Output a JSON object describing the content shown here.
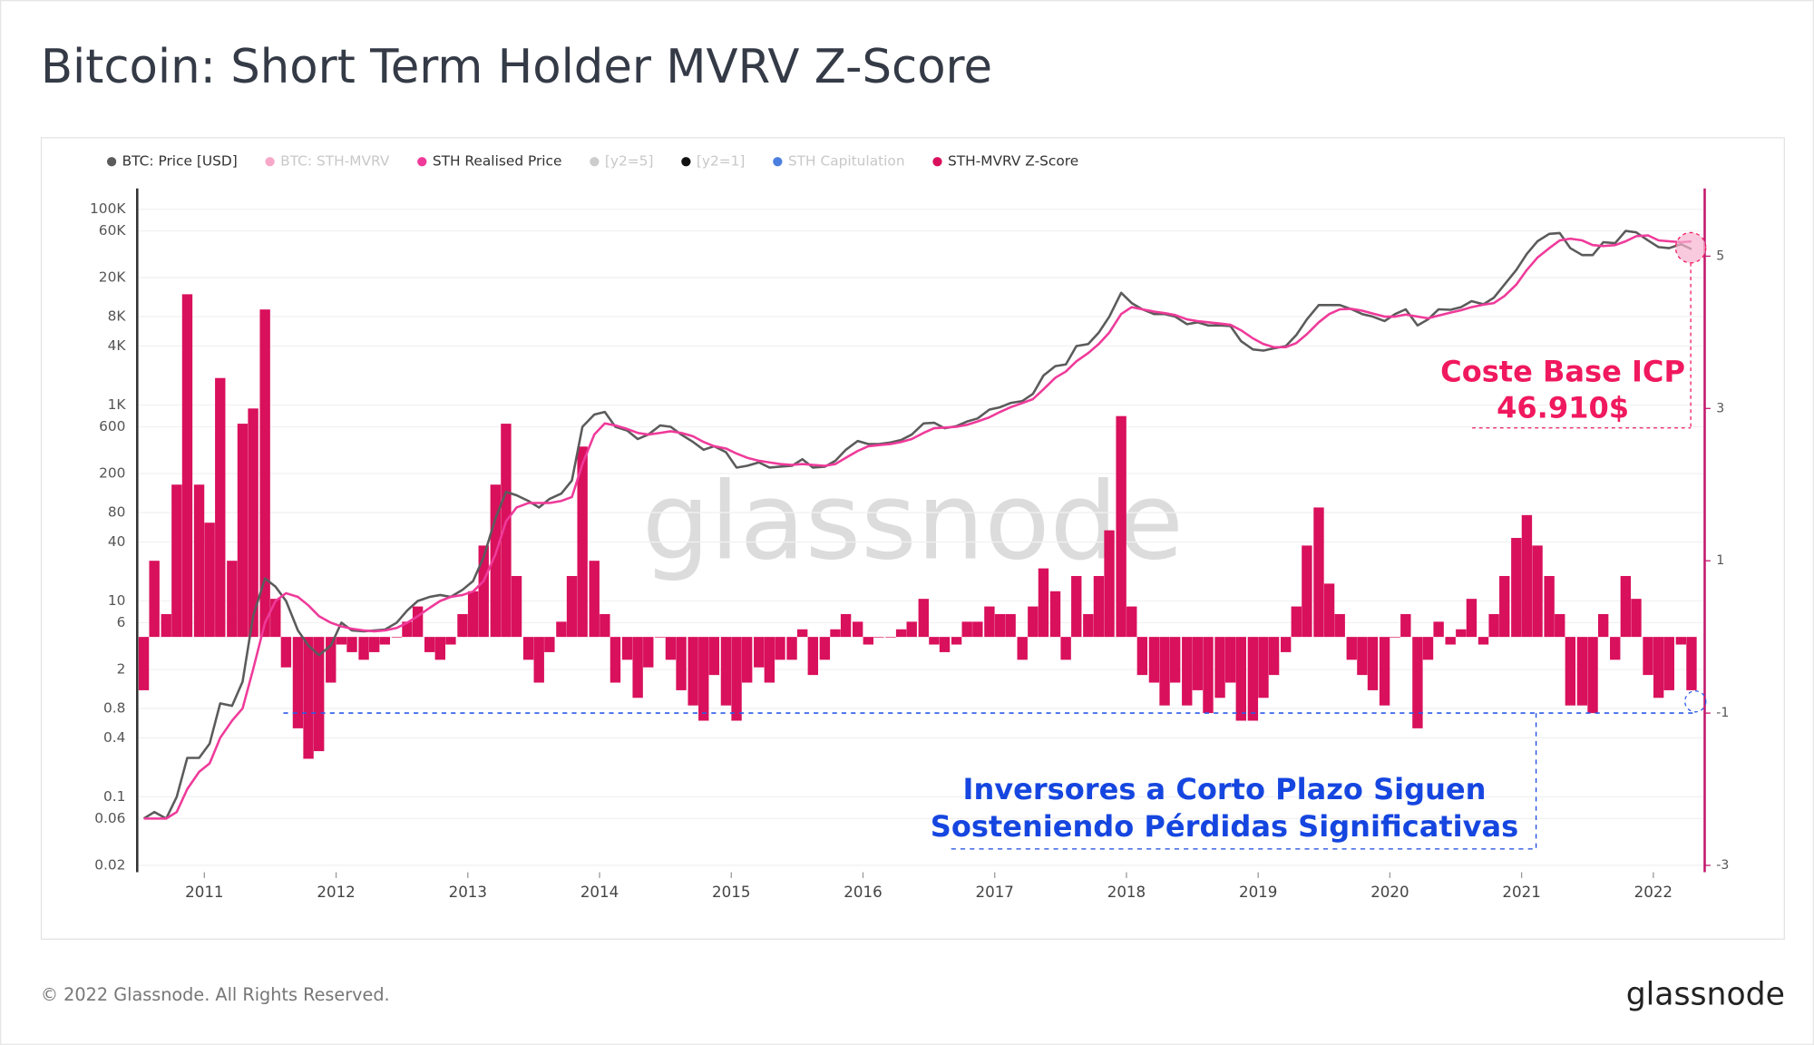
{
  "chart_data": {
    "type": "line",
    "title": "Bitcoin: Short Term Holder MVRV Z-Score",
    "watermark": "glassnode",
    "footer": "© 2022 Glassnode. All Rights Reserved.",
    "logo": "glassnode",
    "yscale": "log",
    "grid": true,
    "xlim": [
      2010.49,
      2022.39
    ],
    "xticks": [
      2011,
      2012,
      2013,
      2014,
      2015,
      2016,
      2017,
      2018,
      2019,
      2020,
      2021,
      2022
    ],
    "ylim": [
      0.017,
      163000
    ],
    "yticks": [
      {
        "value": 100000,
        "label": "100K"
      },
      {
        "value": 60000,
        "label": "60K"
      },
      {
        "value": 20000,
        "label": "20K"
      },
      {
        "value": 8000,
        "label": "8K"
      },
      {
        "value": 4000,
        "label": "4K"
      },
      {
        "value": 1000,
        "label": "1K"
      },
      600,
      200,
      80,
      40,
      10,
      6,
      2,
      0.8,
      0.4,
      0.1,
      0.06,
      0.02
    ],
    "y2lim": [
      -3.09,
      5.89
    ],
    "y2ticks": [
      5,
      3,
      1,
      -1,
      -3
    ],
    "x": [
      2010.54,
      2010.62,
      2010.71,
      2010.79,
      2010.87,
      2010.96,
      2011.04,
      2011.12,
      2011.21,
      2011.29,
      2011.37,
      2011.46,
      2011.54,
      2011.62,
      2011.71,
      2011.79,
      2011.87,
      2011.96,
      2012.04,
      2012.12,
      2012.21,
      2012.29,
      2012.37,
      2012.46,
      2012.54,
      2012.62,
      2012.71,
      2012.79,
      2012.87,
      2012.96,
      2013.04,
      2013.12,
      2013.21,
      2013.29,
      2013.37,
      2013.46,
      2013.54,
      2013.62,
      2013.71,
      2013.79,
      2013.87,
      2013.96,
      2014.04,
      2014.12,
      2014.21,
      2014.29,
      2014.37,
      2014.46,
      2014.54,
      2014.62,
      2014.71,
      2014.79,
      2014.87,
      2014.96,
      2015.04,
      2015.12,
      2015.21,
      2015.29,
      2015.37,
      2015.46,
      2015.54,
      2015.62,
      2015.71,
      2015.79,
      2015.87,
      2015.96,
      2016.04,
      2016.12,
      2016.21,
      2016.29,
      2016.37,
      2016.46,
      2016.54,
      2016.62,
      2016.71,
      2016.79,
      2016.87,
      2016.96,
      2017.04,
      2017.12,
      2017.21,
      2017.29,
      2017.37,
      2017.46,
      2017.54,
      2017.62,
      2017.71,
      2017.79,
      2017.87,
      2017.96,
      2018.04,
      2018.12,
      2018.21,
      2018.29,
      2018.37,
      2018.46,
      2018.54,
      2018.62,
      2018.71,
      2018.79,
      2018.87,
      2018.96,
      2019.04,
      2019.12,
      2019.21,
      2019.29,
      2019.37,
      2019.46,
      2019.54,
      2019.62,
      2019.71,
      2019.79,
      2019.87,
      2019.96,
      2020.04,
      2020.12,
      2020.21,
      2020.29,
      2020.37,
      2020.46,
      2020.54,
      2020.62,
      2020.71,
      2020.79,
      2020.87,
      2020.96,
      2021.04,
      2021.12,
      2021.21,
      2021.29,
      2021.37,
      2021.46,
      2021.54,
      2021.62,
      2021.71,
      2021.79,
      2021.87,
      2021.96,
      2022.04,
      2022.12,
      2022.21,
      2022.29
    ],
    "series": [
      {
        "name": "BTC: Price [USD]",
        "color": "#5b5b5b",
        "visible": true,
        "type": "line",
        "axis": "y",
        "values": [
          0.06,
          0.07,
          0.06,
          0.1,
          0.25,
          0.25,
          0.35,
          0.9,
          0.85,
          1.5,
          7,
          17,
          14,
          10,
          5,
          3.5,
          2.8,
          3.5,
          6,
          5,
          4.9,
          5,
          5.1,
          6,
          8,
          10,
          11,
          11.5,
          11,
          13,
          16,
          28,
          70,
          130,
          120,
          105,
          90,
          110,
          125,
          170,
          600,
          800,
          850,
          600,
          550,
          450,
          500,
          620,
          600,
          500,
          420,
          350,
          380,
          330,
          230,
          240,
          260,
          230,
          235,
          240,
          280,
          230,
          235,
          270,
          350,
          430,
          400,
          400,
          415,
          440,
          500,
          650,
          660,
          580,
          610,
          680,
          730,
          900,
          950,
          1050,
          1100,
          1300,
          2000,
          2500,
          2600,
          4000,
          4200,
          5500,
          8000,
          14000,
          11000,
          9500,
          8500,
          8500,
          8000,
          6700,
          7000,
          6500,
          6500,
          6400,
          4500,
          3700,
          3600,
          3800,
          4000,
          5200,
          7500,
          10500,
          10500,
          10500,
          9500,
          8500,
          8000,
          7200,
          8500,
          9500,
          6500,
          7500,
          9500,
          9400,
          10000,
          11500,
          10700,
          12500,
          17000,
          24000,
          35000,
          47000,
          56000,
          57000,
          40000,
          34000,
          34000,
          46000,
          45000,
          60000,
          58000,
          48000,
          41000,
          40000,
          44000,
          39000
        ]
      },
      {
        "name": "BTC: STH-MVRV",
        "color": "#f7a8c8",
        "visible": false
      },
      {
        "name": "STH Realised Price",
        "color": "#ef3a9a",
        "visible": true,
        "type": "line",
        "axis": "y",
        "values": [
          0.06,
          0.06,
          0.06,
          0.07,
          0.12,
          0.18,
          0.22,
          0.4,
          0.6,
          0.8,
          2,
          6,
          10,
          12,
          11,
          9,
          7,
          6,
          5.5,
          5.2,
          5,
          4.9,
          5,
          5.3,
          6,
          7,
          8.5,
          10,
          11,
          11.5,
          12.5,
          16,
          30,
          65,
          90,
          100,
          100,
          100,
          105,
          115,
          250,
          500,
          650,
          620,
          570,
          520,
          500,
          520,
          540,
          520,
          480,
          420,
          380,
          360,
          320,
          290,
          270,
          260,
          250,
          245,
          250,
          245,
          240,
          250,
          290,
          340,
          380,
          390,
          400,
          420,
          450,
          520,
          580,
          590,
          600,
          630,
          680,
          750,
          850,
          950,
          1050,
          1150,
          1450,
          1900,
          2200,
          2800,
          3400,
          4200,
          5500,
          8500,
          10000,
          9500,
          9000,
          8700,
          8300,
          7500,
          7200,
          7000,
          6800,
          6600,
          5800,
          4800,
          4200,
          3900,
          3900,
          4300,
          5300,
          7000,
          8500,
          9500,
          9600,
          9200,
          8600,
          8000,
          8000,
          8400,
          8000,
          7700,
          8200,
          8800,
          9300,
          10000,
          10600,
          11000,
          13000,
          17000,
          24000,
          32000,
          40000,
          48000,
          50000,
          48000,
          43000,
          42000,
          43000,
          47000,
          53000,
          54000,
          48000,
          47000,
          46000,
          46910
        ]
      },
      {
        "name": "[y2=5]",
        "color": "#cccccc",
        "visible": false
      },
      {
        "name": "[y2=1]",
        "color": "#111111",
        "visible": false
      },
      {
        "name": "STH Capitulation",
        "color": "#4a7fe0",
        "visible": false
      },
      {
        "name": "STH-MVRV Z-Score",
        "color": "#d9105c",
        "visible": true,
        "type": "bar",
        "axis": "y2",
        "values": [
          -0.7,
          1.0,
          0.3,
          2.0,
          4.5,
          2.0,
          1.5,
          3.4,
          1.0,
          2.8,
          3.0,
          4.3,
          0.5,
          -0.4,
          -1.2,
          -1.6,
          -1.5,
          -0.6,
          -0.1,
          -0.2,
          -0.3,
          -0.2,
          -0.1,
          0.0,
          0.2,
          0.4,
          -0.2,
          -0.3,
          -0.1,
          0.3,
          0.6,
          1.2,
          2.0,
          2.8,
          0.8,
          -0.3,
          -0.6,
          -0.2,
          0.2,
          0.8,
          2.5,
          1.0,
          0.3,
          -0.6,
          -0.3,
          -0.8,
          -0.4,
          0.0,
          -0.3,
          -0.7,
          -0.9,
          -1.1,
          -0.5,
          -0.9,
          -1.1,
          -0.6,
          -0.4,
          -0.6,
          -0.3,
          -0.3,
          0.1,
          -0.5,
          -0.3,
          0.1,
          0.3,
          0.2,
          -0.1,
          0.0,
          0.0,
          0.1,
          0.2,
          0.5,
          -0.1,
          -0.2,
          -0.1,
          0.2,
          0.2,
          0.4,
          0.3,
          0.3,
          -0.3,
          0.4,
          0.9,
          0.6,
          -0.3,
          0.8,
          0.3,
          0.8,
          1.4,
          2.9,
          0.4,
          -0.5,
          -0.6,
          -0.9,
          -0.6,
          -0.9,
          -0.7,
          -1.0,
          -0.8,
          -0.6,
          -1.1,
          -1.1,
          -0.8,
          -0.5,
          -0.2,
          0.4,
          1.2,
          1.7,
          0.7,
          0.3,
          -0.3,
          -0.5,
          -0.7,
          -0.9,
          0.0,
          0.3,
          -1.2,
          -0.3,
          0.2,
          -0.1,
          0.1,
          0.5,
          -0.1,
          0.3,
          0.8,
          1.3,
          1.6,
          1.2,
          0.8,
          0.3,
          -0.9,
          -0.9,
          -1.0,
          0.3,
          -0.3,
          0.8,
          0.5,
          -0.5,
          -0.8,
          -0.7,
          -0.1,
          -0.7
        ]
      }
    ],
    "reference_line": {
      "value": -1,
      "axis": "y2",
      "color": "#2a5ce6"
    },
    "annotations": [
      {
        "lines": [
          "Coste Base ICP",
          "46.910$"
        ],
        "color": "#f0185e"
      },
      {
        "lines": [
          "Inversores a Corto Plazo Siguen",
          "Sosteniendo Pérdidas Significativas"
        ],
        "color": "#1646e0"
      }
    ]
  }
}
